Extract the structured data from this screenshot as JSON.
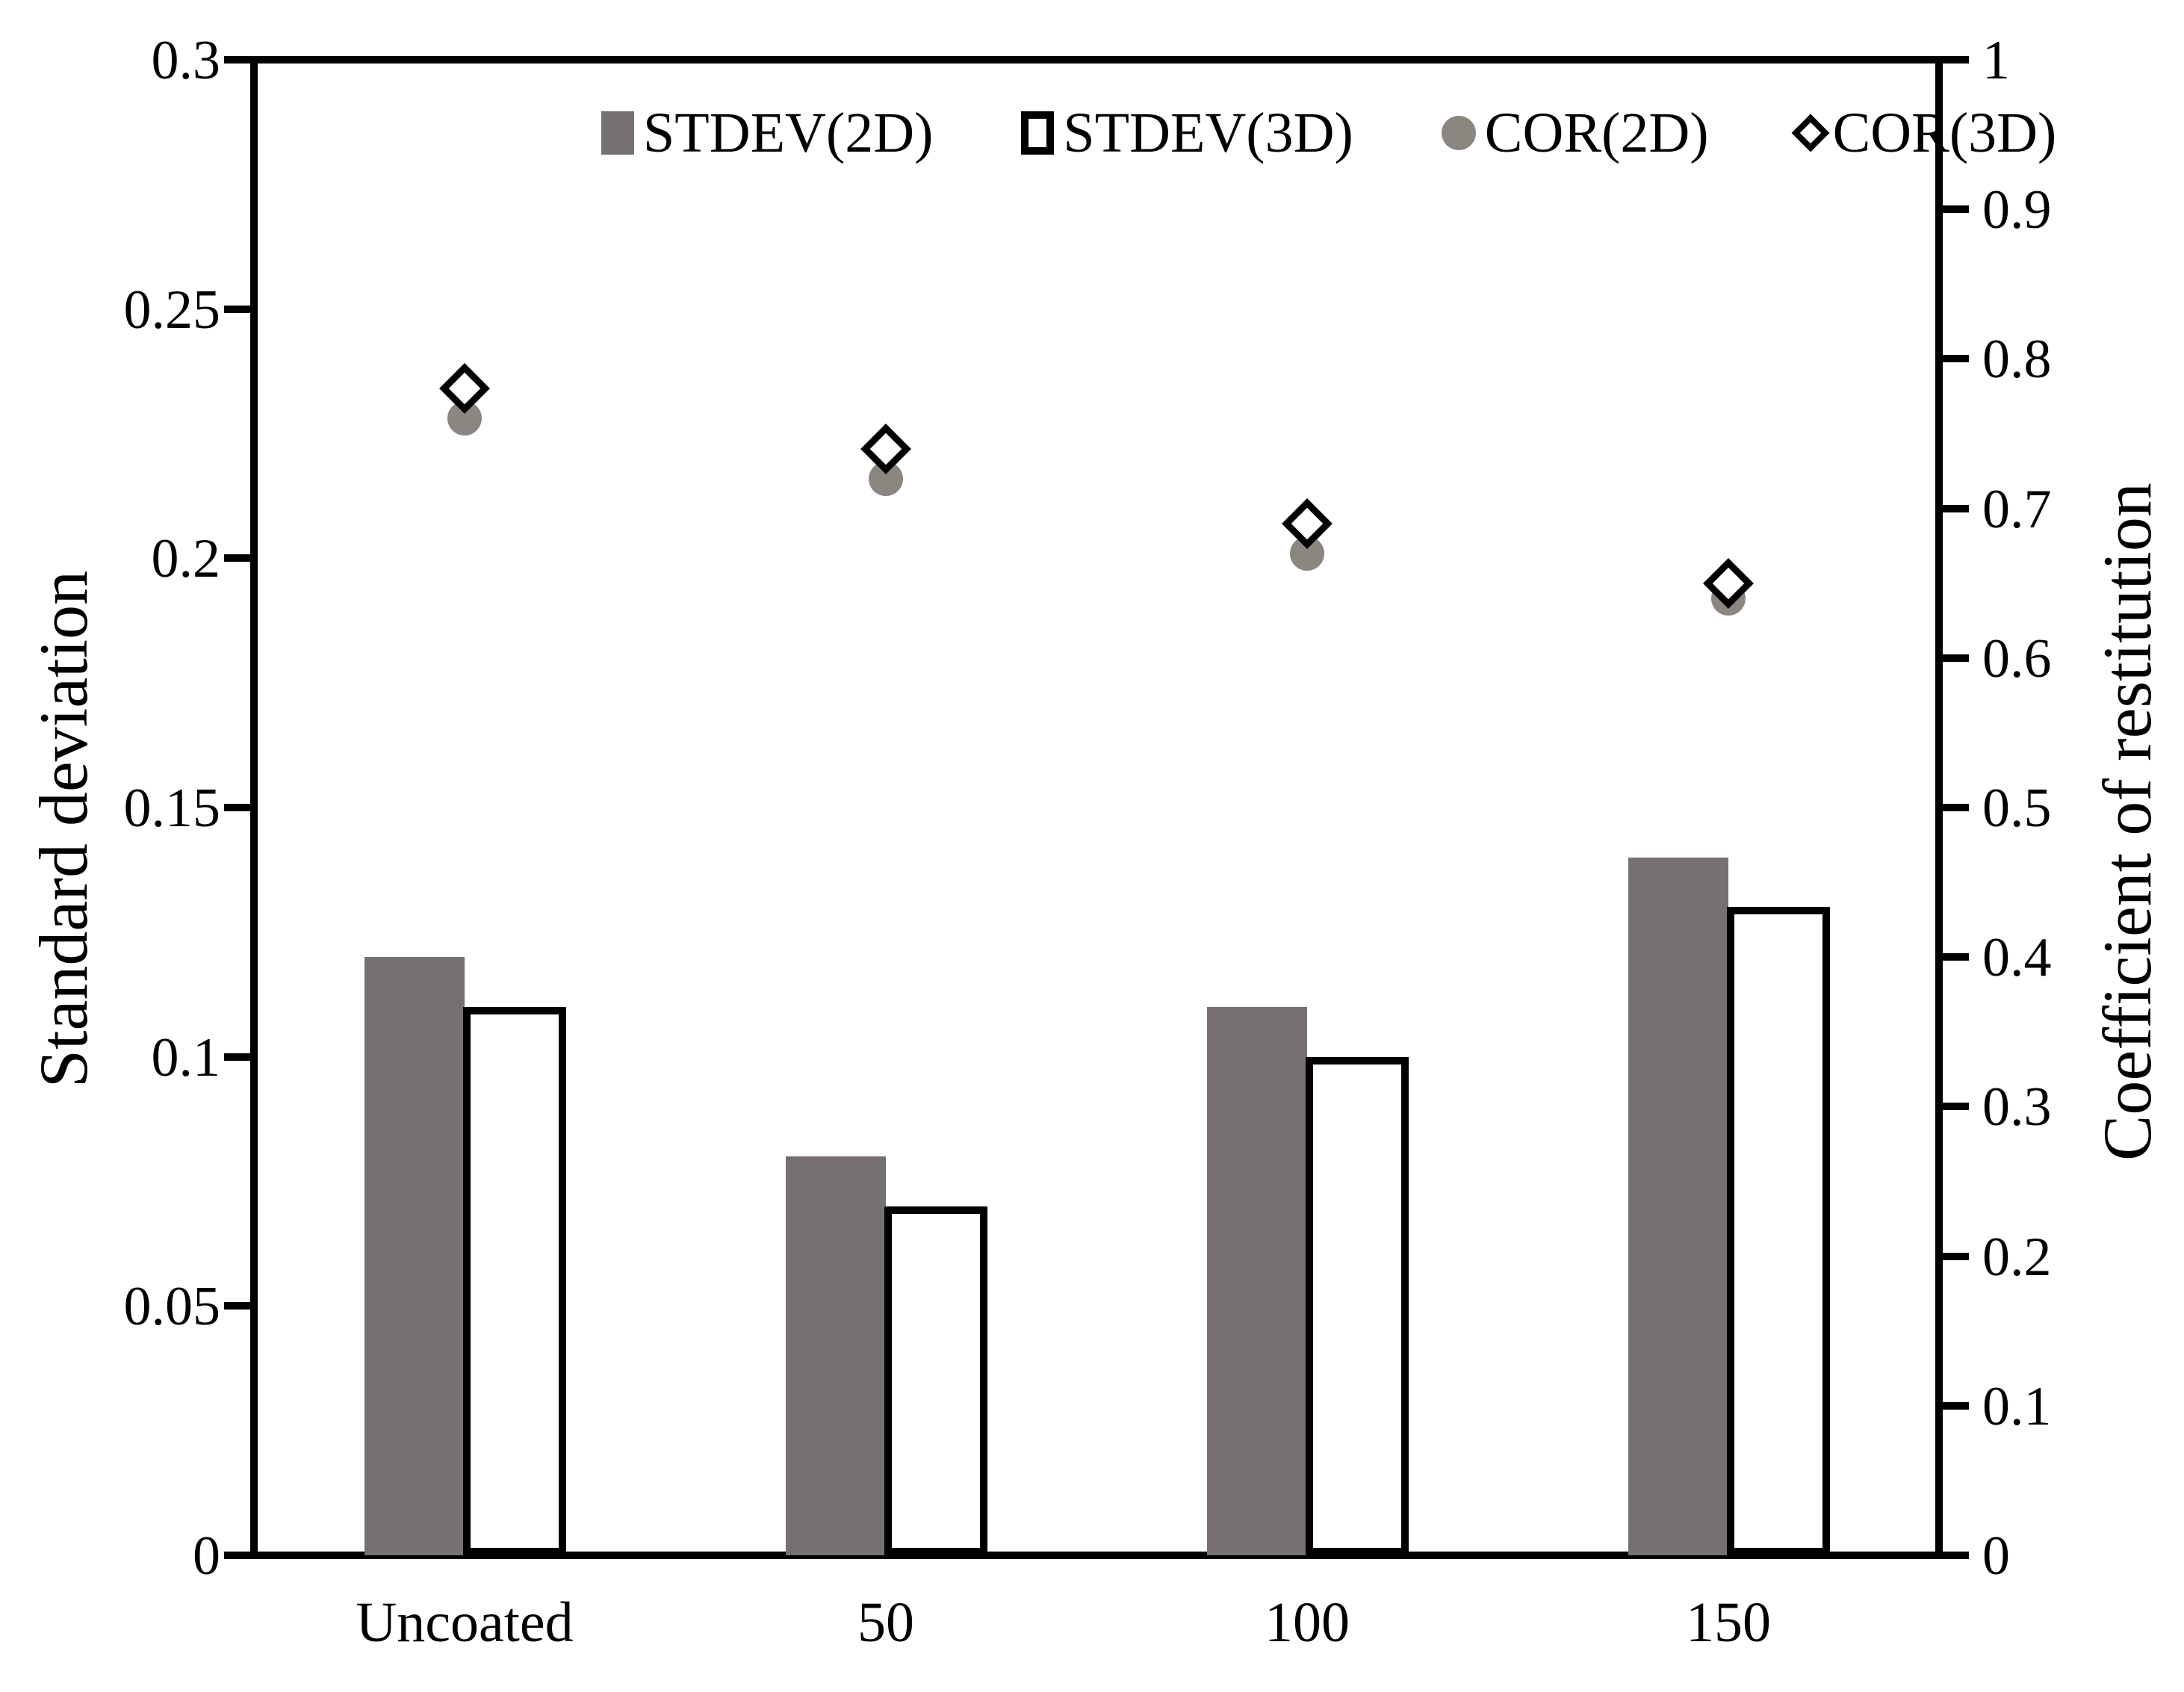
{
  "page": {
    "background": "#ffffff"
  },
  "colors": {
    "bar_gray": "#767170",
    "marker_gray": "#8c8681",
    "line_black": "#000000",
    "white": "#ffffff"
  },
  "chart_data": {
    "type": "combo_bar_scatter",
    "grid": false,
    "categories": [
      "Uncoated",
      "50",
      "100",
      "150"
    ],
    "series": [
      {
        "name": "STDEV(2D)",
        "type": "bar",
        "axis": "left",
        "swatch": "gray-filled-square",
        "values": [
          0.12,
          0.08,
          0.11,
          0.14
        ]
      },
      {
        "name": "STDEV(3D)",
        "type": "bar",
        "axis": "left",
        "swatch": "white-outlined-square",
        "values": [
          0.11,
          0.07,
          0.1,
          0.13
        ]
      },
      {
        "name": "COR(2D)",
        "type": "scatter",
        "axis": "right",
        "swatch": "gray-filled-circle",
        "values": [
          0.76,
          0.72,
          0.67,
          0.64
        ]
      },
      {
        "name": "COR(3D)",
        "type": "scatter",
        "axis": "right",
        "swatch": "white-outlined-diamond",
        "values": [
          0.78,
          0.74,
          0.69,
          0.65
        ]
      }
    ],
    "left_axis": {
      "title": "Standard deviation",
      "min": 0,
      "max": 0.3,
      "tick_labels": [
        "0.3",
        "0.25",
        "0.2",
        "0.15",
        "0.1",
        "0.05",
        "0"
      ]
    },
    "right_axis": {
      "title": "Coefficient of restitution",
      "min": 0,
      "max": 1,
      "tick_labels": [
        "1",
        "0.9",
        "0.8",
        "0.7",
        "0.6",
        "0.5",
        "0.4",
        "0.3",
        "0.2",
        "0.1",
        "0"
      ]
    },
    "x_axis": {
      "labels": [
        "Uncoated",
        "50",
        "100",
        "150"
      ]
    },
    "legend": {
      "position": "top-center",
      "entries": [
        "STDEV(2D)",
        "STDEV(3D)",
        "COR(2D)",
        "COR(3D)"
      ]
    }
  }
}
